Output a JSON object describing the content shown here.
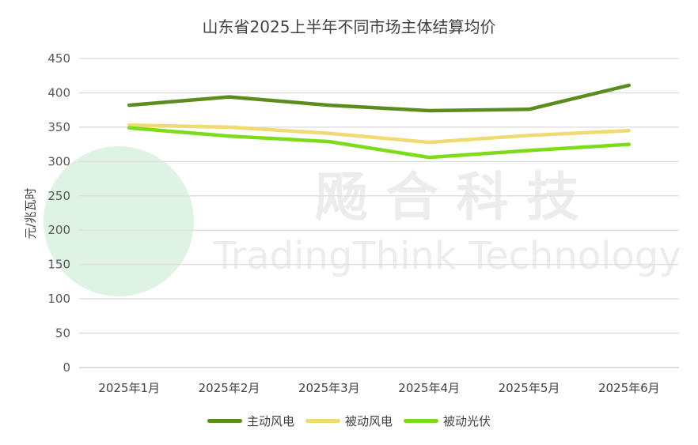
{
  "chart_data": {
    "type": "line",
    "title": "山东省2025上半年不同市场主体结算均价",
    "ylabel": "元/兆瓦时",
    "xlabel": "",
    "ylim": [
      0,
      450
    ],
    "yticks": [
      0,
      50,
      100,
      150,
      200,
      250,
      300,
      350,
      400,
      450
    ],
    "categories": [
      "2025年1月",
      "2025年2月",
      "2025年3月",
      "2025年4月",
      "2025年5月",
      "2025年6月"
    ],
    "grid": true,
    "legend": "bottom",
    "series": [
      {
        "name": "主动风电",
        "color": "#5b8c1e",
        "values": [
          382,
          394,
          382,
          374,
          376,
          411
        ]
      },
      {
        "name": "被动风电",
        "color": "#f0da72",
        "values": [
          353,
          350,
          341,
          328,
          338,
          345
        ]
      },
      {
        "name": "被动光伏",
        "color": "#7ddc1a",
        "values": [
          349,
          337,
          329,
          306,
          316,
          325
        ]
      }
    ]
  },
  "watermark": {
    "cn": "飏 合 科 技",
    "en": "TradingThink Technology"
  }
}
